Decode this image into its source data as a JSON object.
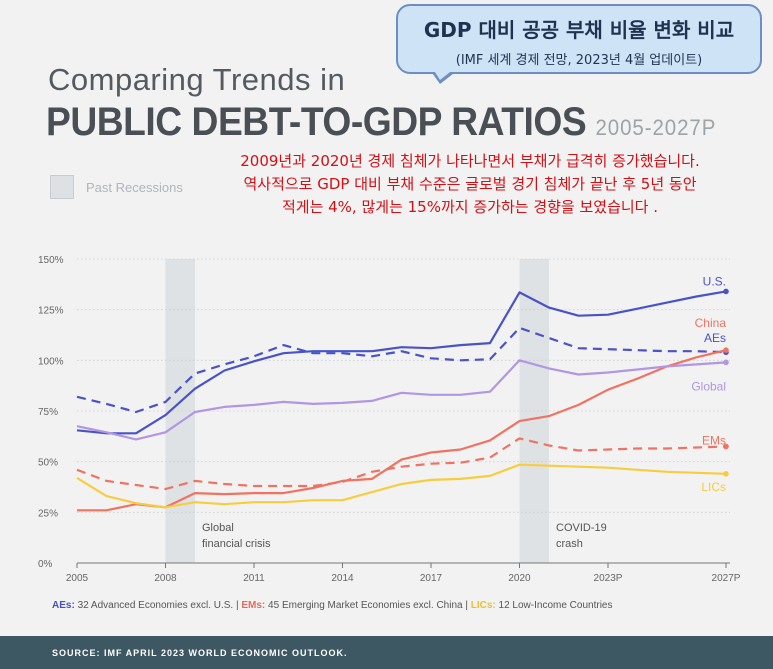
{
  "header": {
    "title_line1": "Comparing Trends in",
    "title_line2": "PUBLIC DEBT-TO-GDP RATIOS",
    "year_range": "2005-2027P"
  },
  "callout": {
    "title": "GDP 대비 공공 부채 비율 변화 비교",
    "subtitle": "(IMF 세계 경제 전망, 2023년 4월 업데이트)"
  },
  "annotation": {
    "line1": "2009년과 2020년 경제 침체가 나타나면서 부채가 급격히 증가했습니다.",
    "line2": "역사적으로 GDP 대비 부채 수준은 글로벌 경기 침체가 끝난 후 5년 동안",
    "line3": "적게는 4%, 많게는 15%까지 증가하는 경향을 보였습니다 ."
  },
  "recession_legend": "Past Recessions",
  "footnote": {
    "ae_key": "AEs:",
    "ae_text": " 32 Advanced Economies excl. U.S.",
    "sep1": " | ",
    "em_key": "EMs:",
    "em_text": " 45 Emerging Market Economies excl. China",
    "sep2": " | ",
    "lic_key": "LICs:",
    "lic_text": " 12 Low-Income Countries"
  },
  "source": "SOURCE: IMF APRIL 2023 WORLD ECONOMIC OUTLOOK.",
  "chart_data": {
    "type": "line",
    "x": [
      2005,
      2006,
      2007,
      2008,
      2009,
      2010,
      2011,
      2012,
      2013,
      2014,
      2015,
      2016,
      2017,
      2018,
      2019,
      2020,
      2021,
      2022,
      2023,
      2024,
      2025,
      2026,
      2027
    ],
    "x_ticks": [
      {
        "value": 2005,
        "label": "2005"
      },
      {
        "value": 2008,
        "label": "2008"
      },
      {
        "value": 2011,
        "label": "2011"
      },
      {
        "value": 2014,
        "label": "2014"
      },
      {
        "value": 2017,
        "label": "2017"
      },
      {
        "value": 2020,
        "label": "2020"
      },
      {
        "value": 2023,
        "label": "2023P"
      },
      {
        "value": 2027,
        "label": "2027P"
      }
    ],
    "y_ticks": [
      {
        "value": 0,
        "label": "0%"
      },
      {
        "value": 25,
        "label": "25%"
      },
      {
        "value": 50,
        "label": "50%"
      },
      {
        "value": 75,
        "label": "75%"
      },
      {
        "value": 100,
        "label": "100%"
      },
      {
        "value": 125,
        "label": "125%"
      },
      {
        "value": 150,
        "label": "150%"
      }
    ],
    "ylim": [
      0,
      150
    ],
    "xlim": [
      2005,
      2027
    ],
    "grid": true,
    "recessions": [
      {
        "start": 2008,
        "end": 2009,
        "label_line1": "Global",
        "label_line2": "financial crisis"
      },
      {
        "start": 2020,
        "end": 2021,
        "label_line1": "COVID-19",
        "label_line2": "crash"
      }
    ],
    "series": [
      {
        "name": "U.S.",
        "color": "#4a52c8",
        "dash": false,
        "endpoint": true,
        "values": [
          65.5,
          64,
          64,
          73,
          86,
          95,
          99.5,
          103.5,
          104.5,
          104.5,
          104.5,
          106.5,
          106,
          107.5,
          108.5,
          133.5,
          126,
          122,
          122.5,
          125.5,
          128.5,
          131.5,
          134
        ]
      },
      {
        "name": "AEs",
        "color": "#4a52c8",
        "dash": true,
        "endpoint": true,
        "values": [
          82,
          78.5,
          74.5,
          79.5,
          93.5,
          98,
          102,
          107.5,
          103.5,
          103.5,
          102,
          104.5,
          101,
          100,
          100.5,
          116,
          111,
          106,
          105.5,
          105,
          104.5,
          104.5,
          104
        ]
      },
      {
        "name": "China",
        "color": "#ef7360",
        "dash": false,
        "endpoint": true,
        "values": [
          26,
          26,
          29,
          27.5,
          34.5,
          34,
          34.5,
          34.5,
          37,
          40.5,
          41.5,
          51,
          54.5,
          56,
          60.5,
          70,
          72.5,
          78,
          85.5,
          91,
          97,
          101.5,
          105
        ]
      },
      {
        "name": "Global",
        "color": "#b196e3",
        "dash": false,
        "endpoint": true,
        "values": [
          67.5,
          64.5,
          61,
          64.5,
          74.5,
          77,
          78,
          79.5,
          78.5,
          79,
          80,
          84,
          83,
          83,
          84.5,
          100,
          96,
          93,
          94,
          95.5,
          97,
          98,
          99
        ]
      },
      {
        "name": "EMs",
        "color": "#ef7360",
        "dash": true,
        "endpoint": true,
        "values": [
          46,
          40.5,
          38.5,
          36.5,
          40.5,
          39,
          38,
          38,
          38,
          40,
          45,
          47.5,
          49,
          49.5,
          52,
          61.5,
          58,
          55.5,
          56,
          56.5,
          56.5,
          57,
          57.5
        ]
      },
      {
        "name": "LICs",
        "color": "#f7cd40",
        "dash": false,
        "endpoint": true,
        "values": [
          42,
          33,
          29.5,
          27.5,
          30,
          29,
          30,
          30,
          31,
          31,
          35,
          39,
          41,
          41.5,
          43,
          48.5,
          48,
          47.5,
          47,
          46,
          45,
          44.5,
          44
        ]
      }
    ],
    "series_labels": [
      {
        "name": "U.S.",
        "text": "U.S.",
        "y": 139
      },
      {
        "name": "China",
        "text": "China",
        "y": 118.5
      },
      {
        "name": "AEs",
        "text": "AEs",
        "y": 111
      },
      {
        "name": "Global",
        "text": "Global",
        "y": 87
      },
      {
        "name": "EMs",
        "text": "EMs",
        "y": 60.5
      },
      {
        "name": "LICs",
        "text": "LICs",
        "y": 37.5
      }
    ]
  }
}
